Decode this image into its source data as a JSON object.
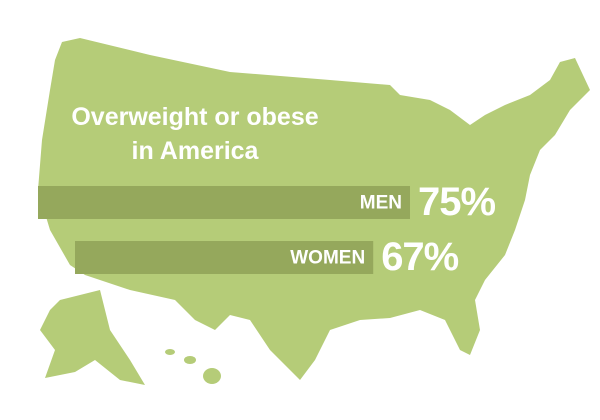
{
  "chart_data": {
    "type": "bar",
    "title": "Overweight or obese in America",
    "categories": [
      "MEN",
      "WOMEN"
    ],
    "values": [
      75,
      67
    ],
    "value_labels": [
      "75%",
      "67%"
    ],
    "color": "#95a85c"
  }
}
